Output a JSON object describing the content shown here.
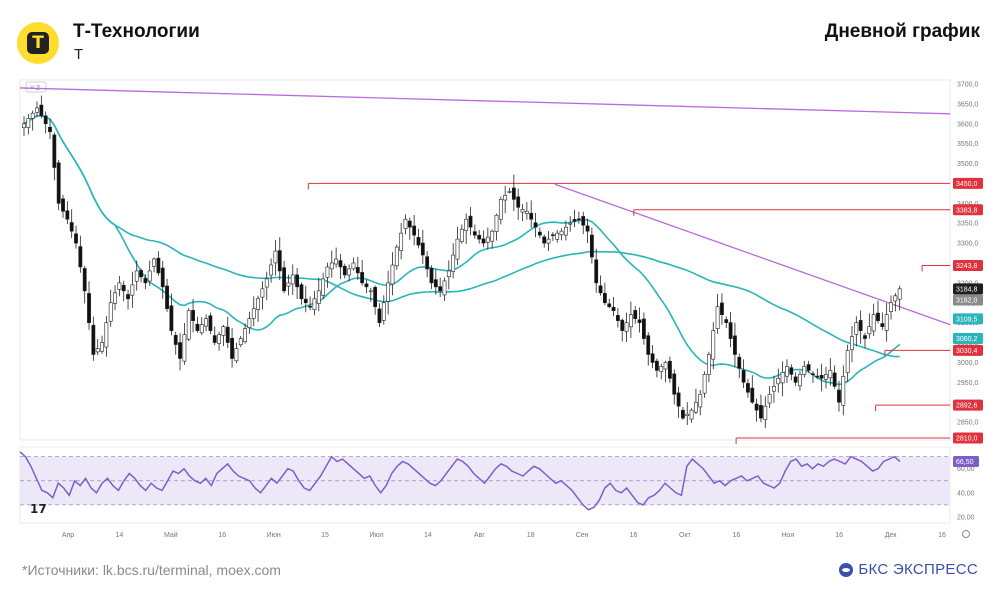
{
  "header": {
    "title": "Т-Технологии",
    "ticker": "Т",
    "subtitle": "Дневной график",
    "logo_letter": "Т"
  },
  "footer": {
    "source": "*Источники: lk.bcs.ru/terminal, moex.com",
    "brand": "БКС ЭКСПРЕСС"
  },
  "colors": {
    "up": "#2e2e2e",
    "down": "#111111",
    "ma_fast": "#2ab5ba",
    "ma_slow": "#2ab5ba",
    "trendline": "#b96bd9",
    "level_red": "#e0323c",
    "rsi": "#7d5fc7",
    "rsi_band": "#ece8f7"
  },
  "chart_data": {
    "type": "candlestick",
    "price_axis": {
      "ylim": [
        2805,
        3710
      ],
      "ticks": [
        "3700,0",
        "3650,0",
        "3600,0",
        "3550,0",
        "3500,0",
        "3450,0",
        "3400,0",
        "3350,0",
        "3300,0",
        "3250,0",
        "3200,0",
        "3150,0",
        "3100,0",
        "3050,0",
        "3000,0",
        "2950,0",
        "2900,0",
        "2850,0"
      ]
    },
    "x_ticks": [
      "Апр",
      "14",
      "Май",
      "16",
      "Июн",
      "15",
      "Июл",
      "14",
      "Авг",
      "18",
      "Сен",
      "16",
      "Окт",
      "16",
      "Ноя",
      "16",
      "Дек",
      "16"
    ],
    "indicator_label": "2",
    "price_labels": [
      {
        "text": "3450,0",
        "value": 3450.0,
        "kind": "level"
      },
      {
        "text": "3383,8",
        "value": 3383.8,
        "kind": "level"
      },
      {
        "text": "3243,8",
        "value": 3243.8,
        "kind": "level"
      },
      {
        "text": "3184,8",
        "value": 3184.8,
        "kind": "last"
      },
      {
        "text": "3182,0",
        "value": 3182.0,
        "kind": "gray"
      },
      {
        "text": "3109,5",
        "value": 3109.5,
        "kind": "ma"
      },
      {
        "text": "3060,2",
        "value": 3060.2,
        "kind": "ma"
      },
      {
        "text": "3030,4",
        "value": 3030.4,
        "kind": "level"
      },
      {
        "text": "2892,6",
        "value": 2892.6,
        "kind": "level"
      },
      {
        "text": "2810,0",
        "value": 2810.0,
        "kind": "level"
      }
    ],
    "levels": [
      {
        "value": 3450.0,
        "from": 0.31
      },
      {
        "value": 3383.8,
        "from": 0.66
      },
      {
        "value": 3243.8,
        "from": 0.97
      },
      {
        "value": 3030.4,
        "from": 0.93
      },
      {
        "value": 2892.6,
        "from": 0.92
      },
      {
        "value": 2810.0,
        "from": 0.77
      }
    ],
    "trendlines": [
      {
        "from": [
          0.0,
          3690
        ],
        "to": [
          1.0,
          3625
        ]
      },
      {
        "from": [
          0.575,
          3448
        ],
        "to": [
          1.0,
          3095
        ]
      }
    ],
    "price_path": [
      [
        0,
        3600
      ],
      [
        3,
        3640
      ],
      [
        6,
        3580
      ],
      [
        8,
        3400
      ],
      [
        10,
        3360
      ],
      [
        12,
        3300
      ],
      [
        14,
        3180
      ],
      [
        16,
        3020
      ],
      [
        18,
        3050
      ],
      [
        20,
        3150
      ],
      [
        22,
        3200
      ],
      [
        24,
        3160
      ],
      [
        26,
        3230
      ],
      [
        28,
        3200
      ],
      [
        30,
        3260
      ],
      [
        32,
        3190
      ],
      [
        34,
        3080
      ],
      [
        36,
        3010
      ],
      [
        38,
        3130
      ],
      [
        40,
        3080
      ],
      [
        42,
        3110
      ],
      [
        44,
        3050
      ],
      [
        46,
        3090
      ],
      [
        48,
        3010
      ],
      [
        50,
        3060
      ],
      [
        52,
        3110
      ],
      [
        54,
        3160
      ],
      [
        56,
        3210
      ],
      [
        58,
        3280
      ],
      [
        60,
        3180
      ],
      [
        62,
        3220
      ],
      [
        64,
        3160
      ],
      [
        66,
        3140
      ],
      [
        68,
        3180
      ],
      [
        70,
        3240
      ],
      [
        72,
        3260
      ],
      [
        74,
        3220
      ],
      [
        76,
        3250
      ],
      [
        78,
        3200
      ],
      [
        80,
        3180
      ],
      [
        82,
        3100
      ],
      [
        84,
        3200
      ],
      [
        86,
        3290
      ],
      [
        88,
        3360
      ],
      [
        90,
        3320
      ],
      [
        92,
        3270
      ],
      [
        94,
        3200
      ],
      [
        96,
        3180
      ],
      [
        98,
        3230
      ],
      [
        100,
        3310
      ],
      [
        102,
        3360
      ],
      [
        104,
        3320
      ],
      [
        106,
        3300
      ],
      [
        108,
        3330
      ],
      [
        110,
        3410
      ],
      [
        112,
        3430
      ],
      [
        114,
        3390
      ],
      [
        116,
        3380
      ],
      [
        118,
        3340
      ],
      [
        120,
        3300
      ],
      [
        122,
        3320
      ],
      [
        124,
        3330
      ],
      [
        126,
        3350
      ],
      [
        128,
        3360
      ],
      [
        130,
        3330
      ],
      [
        132,
        3200
      ],
      [
        134,
        3150
      ],
      [
        136,
        3130
      ],
      [
        138,
        3080
      ],
      [
        140,
        3120
      ],
      [
        142,
        3100
      ],
      [
        144,
        3020
      ],
      [
        146,
        2980
      ],
      [
        148,
        3000
      ],
      [
        150,
        2920
      ],
      [
        152,
        2860
      ],
      [
        154,
        2880
      ],
      [
        156,
        2920
      ],
      [
        158,
        3020
      ],
      [
        160,
        3140
      ],
      [
        162,
        3100
      ],
      [
        164,
        3020
      ],
      [
        166,
        2950
      ],
      [
        168,
        2900
      ],
      [
        170,
        2860
      ],
      [
        172,
        2920
      ],
      [
        174,
        2960
      ],
      [
        176,
        2990
      ],
      [
        178,
        2950
      ],
      [
        180,
        2990
      ],
      [
        182,
        2970
      ],
      [
        184,
        2960
      ],
      [
        186,
        2980
      ],
      [
        188,
        2900
      ],
      [
        190,
        3030
      ],
      [
        192,
        3100
      ],
      [
        194,
        3060
      ],
      [
        196,
        3120
      ],
      [
        198,
        3090
      ],
      [
        200,
        3150
      ],
      [
        202,
        3185
      ]
    ],
    "rsi": {
      "current_label": "66,50",
      "ticks": [
        "60,00",
        "40,00",
        "20,00"
      ],
      "ylim": [
        15,
        78
      ],
      "band": [
        30,
        70
      ],
      "levels": [
        70,
        50,
        30
      ],
      "values": [
        74,
        70,
        62,
        52,
        42,
        40,
        36,
        48,
        44,
        38,
        50,
        46,
        52,
        44,
        40,
        48,
        52,
        46,
        42,
        50,
        56,
        52,
        46,
        42,
        48,
        44,
        42,
        50,
        58,
        56,
        60,
        54,
        50,
        48,
        52,
        46,
        56,
        60,
        64,
        58,
        54,
        52,
        50,
        44,
        40,
        46,
        52,
        48,
        54,
        60,
        58,
        50,
        44,
        42,
        48,
        54,
        62,
        70,
        66,
        68,
        64,
        60,
        56,
        52,
        54,
        46,
        40,
        46,
        56,
        62,
        66,
        64,
        60,
        56,
        52,
        48,
        46,
        50,
        56,
        62,
        68,
        66,
        62,
        56,
        52,
        48,
        54,
        60,
        64,
        62,
        58,
        56,
        54,
        58,
        62,
        60,
        56,
        52,
        48,
        50,
        46,
        42,
        36,
        30,
        26,
        28,
        34,
        44,
        48,
        42,
        40,
        44,
        38,
        32,
        30,
        36,
        38,
        42,
        48,
        44,
        40,
        38,
        62,
        68,
        64,
        60,
        54,
        48,
        50,
        46,
        50,
        52,
        54,
        50,
        52,
        54,
        48,
        46,
        44,
        48,
        58,
        66,
        68,
        62,
        64,
        60,
        64,
        62,
        66,
        68,
        66,
        64,
        70,
        68,
        66,
        62,
        58,
        60,
        66,
        68,
        70,
        66
      ]
    }
  }
}
